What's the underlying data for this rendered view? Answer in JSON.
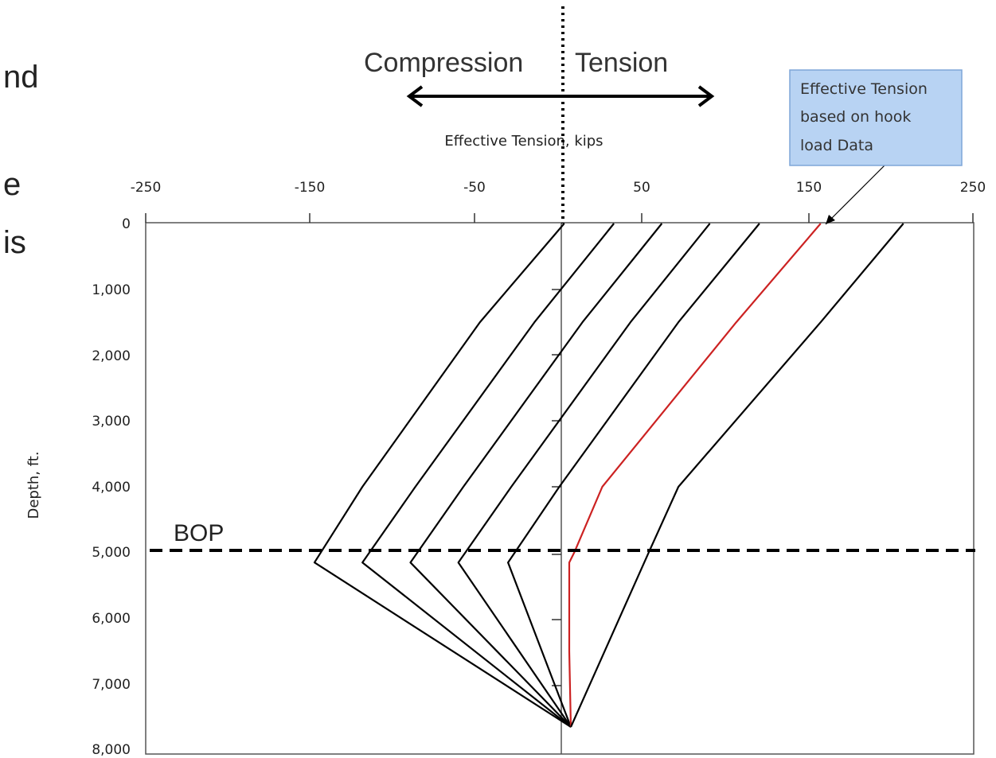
{
  "slide_text_fragments": [
    "nd",
    "e",
    "is"
  ],
  "chart_data": {
    "type": "line",
    "title": "",
    "xlabel": "Effective Tension, kips",
    "ylabel": "Depth, ft.",
    "xlim": [
      -250,
      250
    ],
    "ylim": [
      0,
      8000
    ],
    "y_inverted": true,
    "x_axis_position": "top",
    "x_ticks": [
      -250,
      -150,
      -50,
      50,
      150,
      250
    ],
    "x_tick_labels": [
      "-250",
      "-150",
      "-50",
      "50",
      "150",
      "250"
    ],
    "y_ticks": [
      0,
      1000,
      2000,
      3000,
      4000,
      5000,
      6000,
      7000,
      8000
    ],
    "y_tick_labels": [
      "0",
      "1,000",
      "2,000",
      "3,000",
      "4,000",
      "5,000",
      "6,000",
      "7,000",
      "8,000"
    ],
    "grid": false,
    "series": [
      {
        "color": "#000000",
        "x": [
          3,
          -48,
          -119,
          -148,
          7
        ],
        "y": [
          0,
          1500,
          4000,
          5150,
          7650
        ]
      },
      {
        "color": "#000000",
        "x": [
          33,
          -15,
          -87,
          -119,
          7
        ],
        "y": [
          0,
          1500,
          4000,
          5150,
          7650
        ]
      },
      {
        "color": "#000000",
        "x": [
          62,
          14,
          -58,
          -90,
          7
        ],
        "y": [
          0,
          1500,
          4000,
          5150,
          7650
        ]
      },
      {
        "color": "#000000",
        "x": [
          91,
          43,
          -29,
          -61,
          7
        ],
        "y": [
          0,
          1500,
          4000,
          5150,
          7650
        ]
      },
      {
        "color": "#000000",
        "x": [
          121,
          72,
          0,
          -31,
          7
        ],
        "y": [
          0,
          1500,
          4000,
          5150,
          7650
        ]
      },
      {
        "color": "#cc2222",
        "x": [
          158,
          107,
          26,
          9,
          6,
          6,
          7
        ],
        "y": [
          0,
          1500,
          4000,
          5000,
          5150,
          6500,
          7650
        ]
      },
      {
        "color": "#000000",
        "x": [
          208,
          158,
          72,
          54,
          7
        ],
        "y": [
          0,
          1500,
          4000,
          5000,
          7650
        ]
      }
    ],
    "annotations": {
      "compression": "Compression",
      "tension": "Tension",
      "bop": "BOP",
      "bop_depth": 5000,
      "callout": [
        "Effective Tension",
        "based on hook",
        "load Data"
      ]
    },
    "colors": {
      "highlight": "#cc2222",
      "callout_fill": "#b8d3f3",
      "callout_border": "#7ea6d8"
    }
  }
}
